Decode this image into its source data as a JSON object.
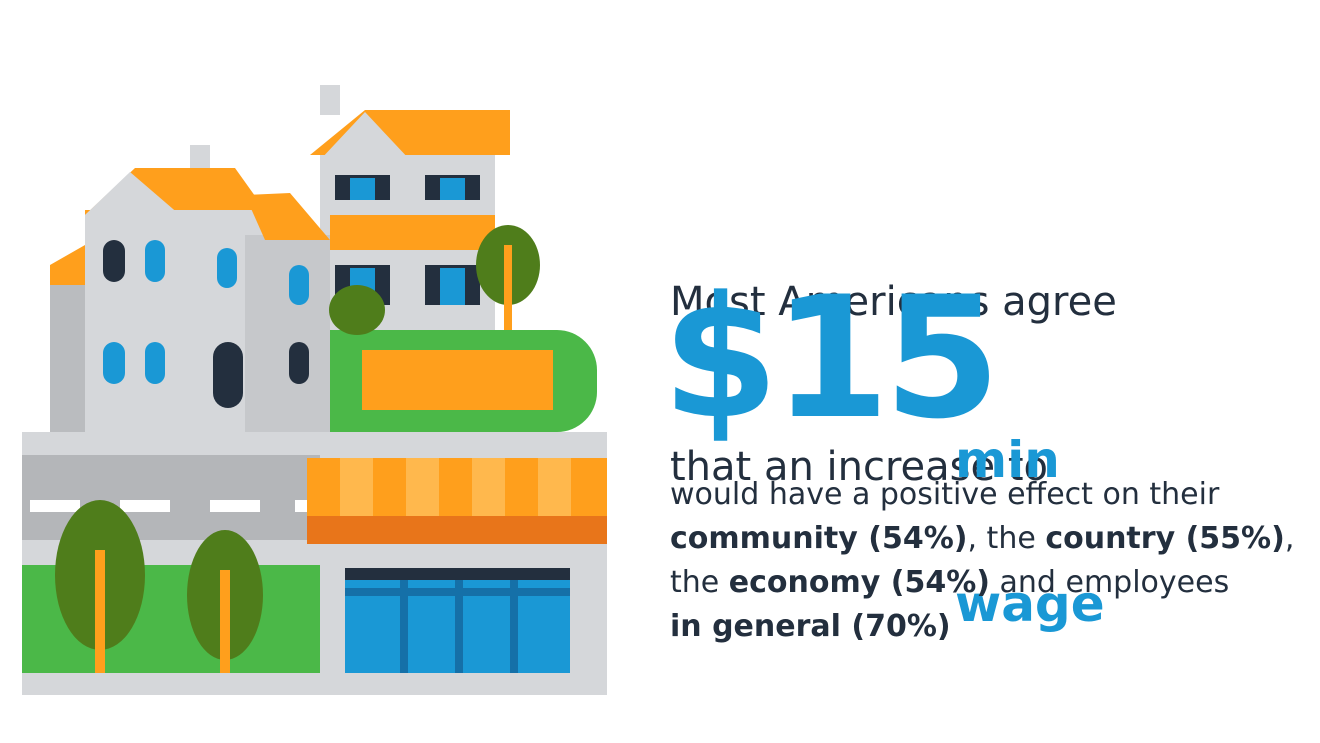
{
  "headline": {
    "lines": [
      "Most Americans agree",
      "that an increase to"
    ]
  },
  "amount": "$15",
  "amount_unit": {
    "lines": [
      "min",
      "wage"
    ]
  },
  "body": {
    "lines": [
      [
        {
          "text": "would have a positive effect on their",
          "bold": false
        }
      ],
      [
        {
          "text": "community (54%)",
          "bold": true
        },
        {
          "text": ", the ",
          "bold": false
        },
        {
          "text": "country (55%)",
          "bold": true
        },
        {
          "text": ",",
          "bold": false
        }
      ],
      [
        {
          "text": "the ",
          "bold": false
        },
        {
          "text": "economy (54%)",
          "bold": true
        },
        {
          "text": " and employees",
          "bold": false
        }
      ],
      [
        {
          "text": "in general (70%)",
          "bold": true
        }
      ]
    ]
  }
}
